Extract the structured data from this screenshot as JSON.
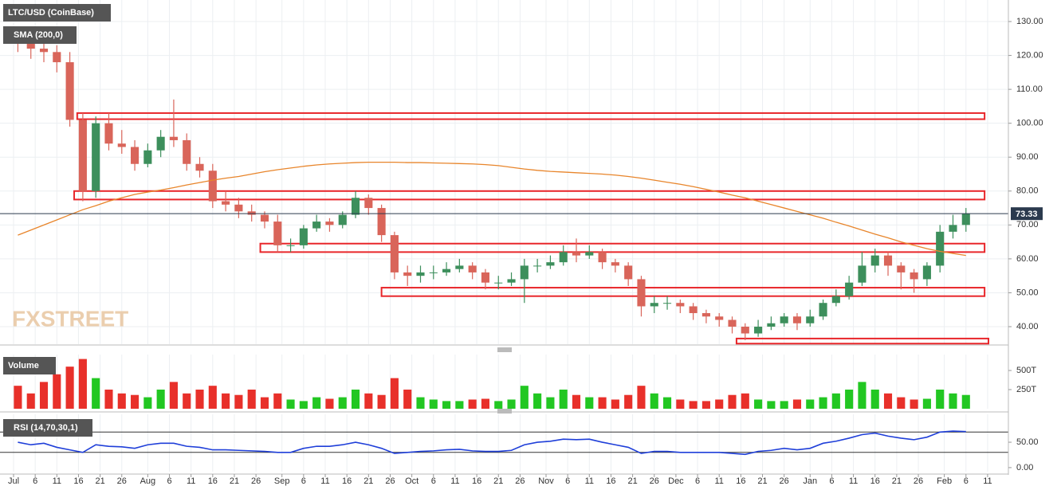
{
  "chart_data": [
    {
      "type": "candlestick",
      "title": "LTC/USD (CoinBase)",
      "watermark": "FXSTREET",
      "x": [
        1,
        4,
        7,
        10,
        13,
        16,
        19,
        22,
        25,
        28,
        31,
        34,
        37,
        40,
        43,
        46,
        49,
        52,
        55,
        58,
        61,
        64,
        67,
        70,
        73,
        76,
        79,
        82,
        85,
        88,
        91,
        94,
        97,
        100,
        103,
        106,
        109,
        112,
        115,
        118,
        121,
        124,
        127,
        130,
        133,
        136,
        139,
        142,
        145,
        148,
        151,
        154,
        157,
        160,
        163,
        166,
        169,
        172,
        175,
        178,
        181,
        184,
        187,
        190,
        193,
        196,
        199,
        202,
        205,
        208,
        211,
        214,
        217,
        220
      ],
      "open": [
        126,
        124,
        122,
        121,
        118,
        101,
        80,
        100,
        94,
        93,
        88,
        92,
        96,
        95,
        88,
        86,
        77,
        76,
        74,
        73,
        71,
        64,
        64,
        69,
        71,
        70,
        73,
        78,
        75,
        67,
        56,
        55,
        56,
        56,
        57,
        58,
        56,
        53,
        53,
        54,
        58,
        58,
        59,
        62,
        61,
        62,
        59,
        58,
        54,
        46,
        47,
        47,
        46,
        44,
        43,
        42,
        40,
        38,
        40,
        41,
        43,
        41,
        43,
        47,
        49,
        53,
        58,
        61,
        58,
        56,
        54,
        58,
        68,
        70
      ],
      "high": [
        128,
        127,
        125,
        123,
        121,
        103,
        102,
        103,
        98,
        95,
        94,
        98,
        107,
        97,
        90,
        88,
        80,
        78,
        76,
        74,
        73,
        66,
        70,
        73,
        72,
        74,
        80,
        79,
        76,
        68,
        58,
        58,
        58,
        59,
        60,
        59,
        57,
        55,
        56,
        60,
        60,
        61,
        64,
        66,
        64,
        63,
        60,
        59,
        55,
        49,
        49,
        48,
        47,
        45,
        44,
        43,
        41,
        42,
        43,
        44,
        44,
        45,
        48,
        51,
        55,
        62,
        63,
        62,
        59,
        57,
        59,
        70,
        73,
        75
      ],
      "low": [
        121,
        119,
        118,
        115,
        99,
        77,
        78,
        92,
        91,
        86,
        87,
        90,
        93,
        86,
        84,
        75,
        74,
        72,
        71,
        69,
        62,
        62,
        63,
        68,
        68,
        69,
        72,
        73,
        65,
        54,
        52,
        53,
        54,
        55,
        56,
        54,
        51,
        51,
        52,
        47,
        56,
        57,
        58,
        59,
        60,
        57,
        56,
        52,
        43,
        44,
        45,
        44,
        42,
        41,
        40,
        38,
        36,
        37,
        39,
        40,
        39,
        40,
        42,
        46,
        48,
        52,
        56,
        55,
        51,
        50,
        52,
        56,
        66,
        68
      ],
      "close": [
        124,
        122,
        121,
        118,
        101,
        80,
        100,
        94,
        93,
        88,
        92,
        96,
        95,
        88,
        86,
        77,
        76,
        74,
        73,
        71,
        64,
        64,
        69,
        71,
        70,
        73,
        78,
        75,
        67,
        56,
        55,
        56,
        56,
        57,
        58,
        56,
        53,
        53,
        54,
        58,
        58,
        59,
        62,
        61,
        62,
        59,
        58,
        54,
        46,
        47,
        47,
        46,
        44,
        43,
        42,
        40,
        38,
        40,
        41,
        43,
        41,
        43,
        47,
        49,
        53,
        58,
        61,
        58,
        56,
        54,
        58,
        68,
        70,
        73.33
      ],
      "up_color": "#3d8f5c",
      "down_color": "#d9655a",
      "sma": {
        "name": "SMA (200,0)",
        "color": "#e8852b",
        "values": [
          67,
          68.5,
          70,
          71.5,
          73,
          74.5,
          75.7,
          77,
          78,
          79,
          79.7,
          80.3,
          81,
          81.8,
          82.5,
          83.2,
          83.8,
          84.3,
          85,
          85.7,
          86.3,
          86.8,
          87.3,
          87.7,
          88,
          88.2,
          88.4,
          88.5,
          88.5,
          88.5,
          88.4,
          88.4,
          88.3,
          88.2,
          88.1,
          88,
          87.8,
          87.5,
          87,
          86.5,
          86.1,
          85.8,
          85.6,
          85.4,
          85.2,
          85,
          84.7,
          84.3,
          83.8,
          83.2,
          82.6,
          82,
          81.3,
          80.5,
          79.7,
          78.8,
          78,
          77,
          76,
          75,
          74,
          73,
          72,
          70.8,
          69.7,
          68.5,
          67.3,
          66.2,
          65,
          64,
          63,
          62.2,
          61.6,
          61
        ]
      },
      "zones": [
        {
          "from": 14.7,
          "to": 224.3,
          "low": 101.2,
          "high": 103
        },
        {
          "from": 14,
          "to": 224.3,
          "low": 77.5,
          "high": 80
        },
        {
          "from": 57,
          "to": 224.3,
          "low": 62,
          "high": 64.5
        },
        {
          "from": 85,
          "to": 224.3,
          "low": 49,
          "high": 51.5
        },
        {
          "from": 167,
          "to": 225.2,
          "low": 35,
          "high": 36.5
        }
      ],
      "zone_color": "#e8262a",
      "xlim": [
        -3.13,
        229.8
      ],
      "ylim": [
        34.83,
        136.35
      ],
      "yticks": [
        {
          "value": 40,
          "label": "40.00"
        },
        {
          "value": 50,
          "label": "50.00"
        },
        {
          "value": 60,
          "label": "60.00"
        },
        {
          "value": 70,
          "label": "70.00"
        },
        {
          "value": 80,
          "label": "80.00"
        },
        {
          "value": 90,
          "label": "90.00"
        },
        {
          "value": 100,
          "label": "100.00"
        },
        {
          "value": 110,
          "label": "110.00"
        },
        {
          "value": 120,
          "label": "120.00"
        },
        {
          "value": 130,
          "label": "130.00"
        }
      ],
      "xticks": [
        {
          "value": 0,
          "label": "Jul"
        },
        {
          "value": 5,
          "label": "6"
        },
        {
          "value": 10,
          "label": "11"
        },
        {
          "value": 15,
          "label": "16"
        },
        {
          "value": 20,
          "label": "21"
        },
        {
          "value": 25,
          "label": "26"
        },
        {
          "value": 31,
          "label": "Aug"
        },
        {
          "value": 36,
          "label": "6"
        },
        {
          "value": 41,
          "label": "11"
        },
        {
          "value": 46,
          "label": "16"
        },
        {
          "value": 51,
          "label": "21"
        },
        {
          "value": 56,
          "label": "26"
        },
        {
          "value": 62,
          "label": "Sep"
        },
        {
          "value": 67,
          "label": "6"
        },
        {
          "value": 72,
          "label": "11"
        },
        {
          "value": 77,
          "label": "16"
        },
        {
          "value": 82,
          "label": "21"
        },
        {
          "value": 87,
          "label": "26"
        },
        {
          "value": 92,
          "label": "Oct"
        },
        {
          "value": 97,
          "label": "6"
        },
        {
          "value": 102,
          "label": "11"
        },
        {
          "value": 107,
          "label": "16"
        },
        {
          "value": 112,
          "label": "21"
        },
        {
          "value": 117,
          "label": "26"
        },
        {
          "value": 123,
          "label": "Nov"
        },
        {
          "value": 128,
          "label": "6"
        },
        {
          "value": 133,
          "label": "11"
        },
        {
          "value": 138,
          "label": "16"
        },
        {
          "value": 143,
          "label": "21"
        },
        {
          "value": 148,
          "label": "26"
        },
        {
          "value": 153,
          "label": "Dec"
        },
        {
          "value": 158,
          "label": "6"
        },
        {
          "value": 163,
          "label": "11"
        },
        {
          "value": 168,
          "label": "16"
        },
        {
          "value": 173,
          "label": "21"
        },
        {
          "value": 178,
          "label": "26"
        },
        {
          "value": 184,
          "label": "Jan"
        },
        {
          "value": 189,
          "label": "6"
        },
        {
          "value": 194,
          "label": "11"
        },
        {
          "value": 199,
          "label": "16"
        },
        {
          "value": 204,
          "label": "21"
        },
        {
          "value": 209,
          "label": "26"
        },
        {
          "value": 215,
          "label": "Feb"
        },
        {
          "value": 220,
          "label": "6"
        },
        {
          "value": 225,
          "label": "11"
        }
      ],
      "grid": true
    },
    {
      "type": "bar",
      "title": "Volume",
      "up_color": "#22c722",
      "down_color": "#e8302a",
      "values": [
        300,
        200,
        350,
        450,
        550,
        650,
        400,
        250,
        200,
        180,
        150,
        250,
        350,
        200,
        250,
        300,
        200,
        180,
        250,
        150,
        200,
        120,
        100,
        150,
        130,
        150,
        250,
        200,
        180,
        400,
        250,
        150,
        120,
        100,
        100,
        120,
        130,
        100,
        120,
        300,
        200,
        150,
        250,
        180,
        150,
        150,
        120,
        180,
        300,
        200,
        150,
        120,
        100,
        100,
        120,
        180,
        200,
        120,
        100,
        100,
        120,
        120,
        150,
        200,
        250,
        350,
        250,
        200,
        150,
        120,
        130,
        250,
        200,
        180
      ],
      "ylim": [
        0,
        708
      ],
      "yticks": [
        {
          "value": 250,
          "label": "250T"
        },
        {
          "value": 500,
          "label": "500T"
        }
      ]
    },
    {
      "type": "line",
      "title": "RSI (14,70,30,1)",
      "color": "#1f3fd9",
      "values": [
        50,
        45,
        48,
        40,
        35,
        30,
        45,
        42,
        41,
        38,
        45,
        48,
        48,
        42,
        40,
        35,
        35,
        34,
        33,
        32,
        30,
        30,
        38,
        42,
        42,
        45,
        50,
        45,
        38,
        28,
        30,
        32,
        33,
        35,
        36,
        33,
        32,
        32,
        34,
        45,
        50,
        52,
        56,
        55,
        56,
        50,
        45,
        40,
        28,
        32,
        32,
        30,
        30,
        30,
        30,
        28,
        26,
        32,
        34,
        38,
        35,
        38,
        48,
        52,
        58,
        65,
        68,
        62,
        58,
        55,
        60,
        70,
        72,
        71
      ],
      "levels": [
        70,
        30
      ],
      "ylim": [
        -8,
        105
      ],
      "yticks": [
        {
          "value": 0,
          "label": "0.00"
        },
        {
          "value": 50,
          "label": "50.00"
        }
      ]
    }
  ]
}
